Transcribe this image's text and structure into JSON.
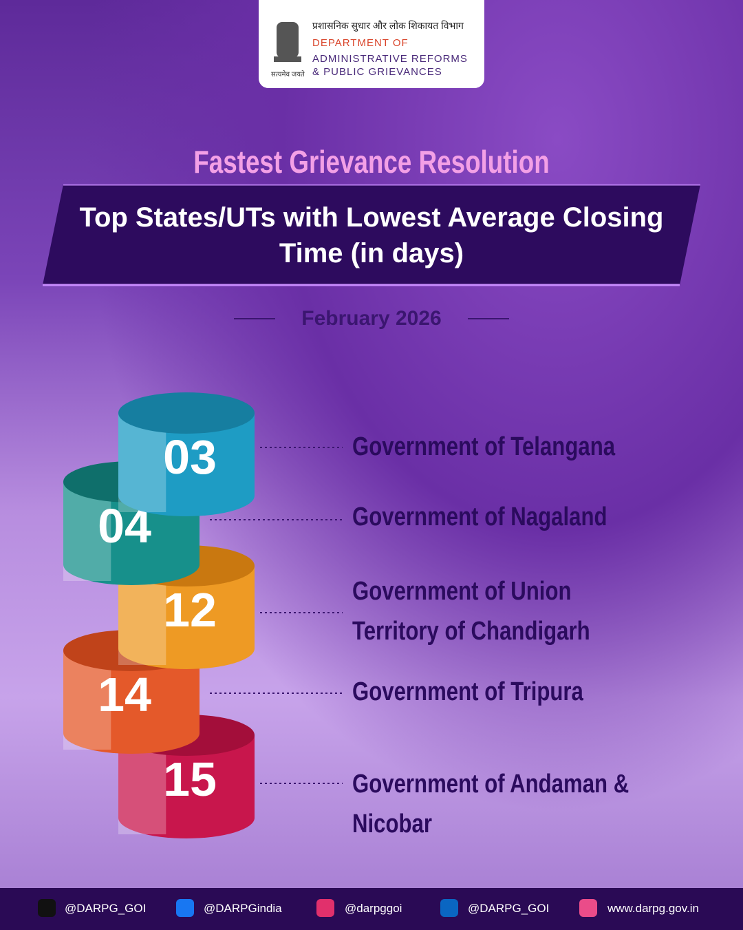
{
  "header": {
    "hindi": "प्रशासनिक सुधार और लोक शिकायत विभाग",
    "line1": "DEPARTMENT OF",
    "line2": "ADMINISTRATIVE REFORMS",
    "line3": "& PUBLIC GRIEVANCES",
    "motto": "सत्यमेव जयते"
  },
  "title": "Fastest Grievance Resolution",
  "subtitle": "Top States/UTs with Lowest Average Closing Time (in days)",
  "date": "February 2026",
  "items": [
    {
      "value": "03",
      "label": "Government of Telangana"
    },
    {
      "value": "04",
      "label": "Government of Nagaland"
    },
    {
      "value": "12",
      "label": "Government of Union Territory of Chandigarh"
    },
    {
      "value": "14",
      "label": "Government of Tripura"
    },
    {
      "value": "15",
      "label": "Government of Andaman & Nicobar"
    }
  ],
  "footer": [
    "@DARPG_GOI",
    "@DARPGindia",
    "@darpggoi",
    "@DARPG_GOI",
    "www.darpg.gov.in"
  ]
}
